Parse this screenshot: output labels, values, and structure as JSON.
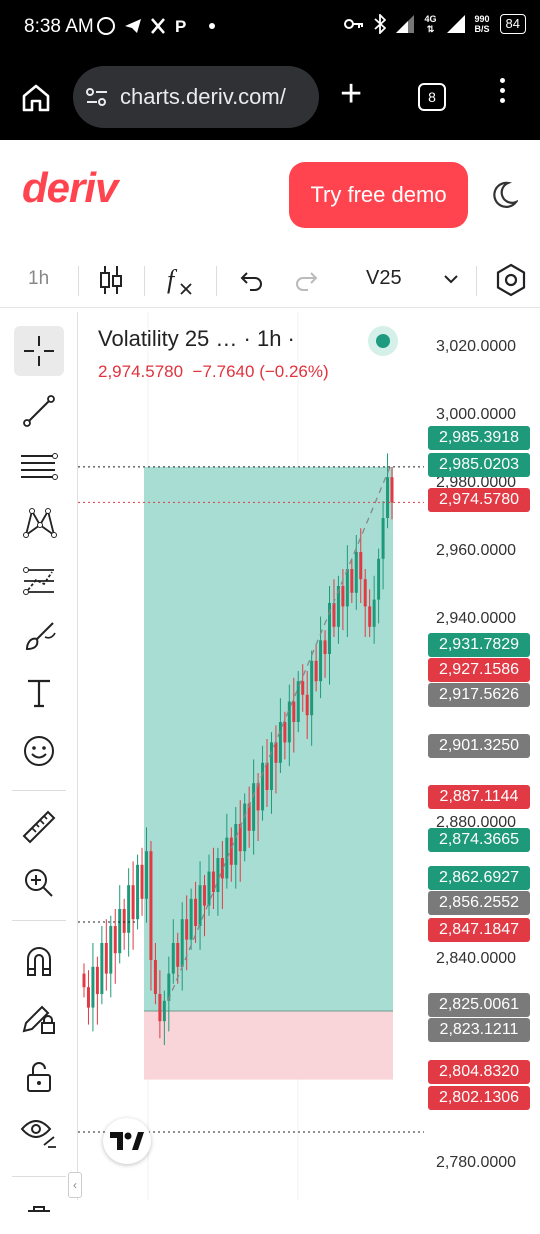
{
  "status": {
    "time": "8:38 AM",
    "net_speed_top": "990",
    "net_speed_bottom": "B/S",
    "network": "4G",
    "battery": "84"
  },
  "browser": {
    "url": "charts.deriv.com/",
    "tab_count": "8"
  },
  "header": {
    "logo": "deriv",
    "demo_button": "Try free demo"
  },
  "toolbar": {
    "timeframe": "1h",
    "symbol": "V25"
  },
  "legend": {
    "title": "Volatility 25 … · 1h ·",
    "price": "2,974.5780",
    "change": "−7.7640 (−0.26%)"
  },
  "axis": {
    "ticks": [
      {
        "label": "3,020.0000",
        "value": 3020
      },
      {
        "label": "3,000.0000",
        "value": 3000
      },
      {
        "label": "2,980.0000",
        "value": 2980
      },
      {
        "label": "2,960.0000",
        "value": 2960
      },
      {
        "label": "2,940.0000",
        "value": 2940
      },
      {
        "label": "2,880.0000",
        "value": 2880
      },
      {
        "label": "2,840.0000",
        "value": 2840
      },
      {
        "label": "2,780.0000",
        "value": 2780
      }
    ]
  },
  "price_labels": [
    {
      "text": "2,985.3918",
      "color": "green"
    },
    {
      "text": "2,985.0203",
      "color": "green"
    },
    {
      "text": "2,974.5780",
      "color": "red"
    },
    {
      "text": "2,931.7829",
      "color": "green"
    },
    {
      "text": "2,927.1586",
      "color": "red"
    },
    {
      "text": "2,917.5626",
      "color": "gray"
    },
    {
      "text": "2,901.3250",
      "color": "gray"
    },
    {
      "text": "2,887.1144",
      "color": "red"
    },
    {
      "text": "2,874.3665",
      "color": "green"
    },
    {
      "text": "2,862.6927",
      "color": "green"
    },
    {
      "text": "2,856.2552",
      "color": "gray"
    },
    {
      "text": "2,847.1847",
      "color": "red"
    },
    {
      "text": "2,825.0061",
      "color": "gray"
    },
    {
      "text": "2,823.1211",
      "color": "gray"
    },
    {
      "text": "2,804.8320",
      "color": "red"
    },
    {
      "text": "2,802.1306",
      "color": "red"
    }
  ],
  "colors": {
    "brand": "#ff444f",
    "up": "#1e9a7a",
    "down": "#e13a44",
    "neutral": "#7a7a7a"
  },
  "chart_data": {
    "type": "candlestick",
    "ylim": [
      2780,
      3030
    ],
    "position": {
      "entry": 2825.0061,
      "target": 2985.0203,
      "stop": 2804.832
    },
    "candles_close": [
      2832,
      2826,
      2838,
      2830,
      2845,
      2836,
      2850,
      2842,
      2855,
      2848,
      2862,
      2852,
      2868,
      2858,
      2872,
      2840,
      2830,
      2822,
      2828,
      2836,
      2845,
      2838,
      2852,
      2846,
      2858,
      2850,
      2862,
      2856,
      2866,
      2860,
      2870,
      2864,
      2876,
      2868,
      2880,
      2872,
      2886,
      2878,
      2892,
      2884,
      2898,
      2890,
      2904,
      2898,
      2910,
      2904,
      2916,
      2910,
      2922,
      2918,
      2912,
      2928,
      2922,
      2934,
      2930,
      2945,
      2938,
      2950,
      2944,
      2955,
      2948,
      2960,
      2952,
      2944,
      2938,
      2946,
      2958,
      2970,
      2982,
      2974.578
    ]
  }
}
